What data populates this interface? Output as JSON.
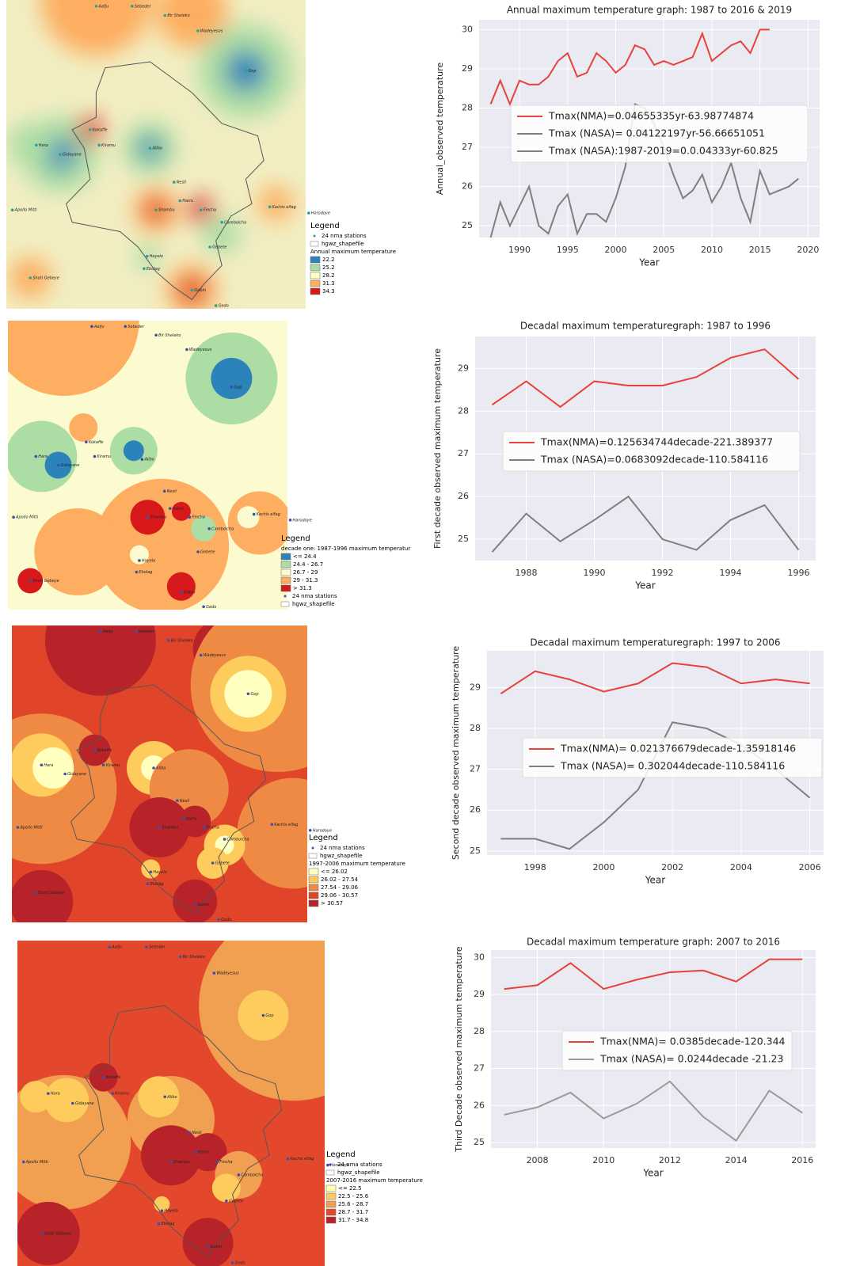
{
  "chart_data": [
    {
      "type": "line",
      "title": "Annual maximum temperature graph: 1987 to 2016 & 2019",
      "x_label": "Year",
      "y_label": "Annual_observed temperature",
      "x": [
        1987,
        1988,
        1989,
        1990,
        1991,
        1992,
        1993,
        1994,
        1995,
        1996,
        1997,
        1998,
        1999,
        2000,
        2001,
        2002,
        2003,
        2004,
        2005,
        2006,
        2007,
        2008,
        2009,
        2010,
        2011,
        2012,
        2013,
        2014,
        2015,
        2016,
        2017,
        2018,
        2019
      ],
      "series": [
        {
          "name": "Tmax(NMA)=0.04655335yr-63.98774874",
          "color": "#e8413b",
          "values": [
            28.1,
            28.7,
            28.1,
            28.7,
            28.6,
            28.6,
            28.8,
            29.2,
            29.4,
            28.8,
            28.9,
            29.4,
            29.2,
            28.9,
            29.1,
            29.6,
            29.5,
            29.1,
            29.2,
            29.1,
            29.2,
            29.3,
            29.9,
            29.2,
            29.4,
            29.6,
            29.7,
            29.4,
            30.0,
            30.0,
            null,
            null,
            null
          ]
        },
        {
          "name": "Tmax (NASA)= 0.04122197yr-56.66651051",
          "color": "#7f7f7f",
          "values": [
            24.7,
            25.6,
            25.0,
            25.5,
            26.0,
            25.0,
            24.8,
            25.5,
            25.8,
            24.8,
            25.3,
            25.3,
            25.1,
            25.7,
            26.5,
            28.1,
            28.0,
            27.6,
            27.0,
            26.3,
            25.7,
            25.9,
            26.3,
            25.6,
            26.0,
            26.6,
            25.7,
            25.1,
            26.4,
            25.8,
            25.9,
            26.0,
            26.2
          ]
        }
      ],
      "legend_extra": [
        {
          "label": "Tmax (NASA):1987-2019=0.0.04333yr-60.825",
          "color": "#7f7f7f"
        }
      ],
      "xlim": [
        1985.8,
        2021.2
      ],
      "xticks": [
        1990,
        1995,
        2000,
        2005,
        2010,
        2015,
        2020
      ],
      "ylim": [
        24.7,
        30.25
      ],
      "yticks": [
        25,
        26,
        27,
        28,
        29,
        30
      ],
      "grid": true
    },
    {
      "type": "line",
      "title": "Decadal maximum temperaturegraph: 1987 to 1996",
      "x_label": "Year",
      "y_label": "First decade observed maximum temperature",
      "x": [
        1987,
        1988,
        1989,
        1990,
        1991,
        1992,
        1993,
        1994,
        1995,
        1996
      ],
      "series": [
        {
          "name": "Tmax(NMA)=0.125634744decade-221.389377",
          "color": "#e8413b",
          "values": [
            28.15,
            28.7,
            28.1,
            28.7,
            28.6,
            28.6,
            28.8,
            29.25,
            29.45,
            28.75
          ]
        },
        {
          "name": "Tmax (NASA)=0.0683092decade-110.584116",
          "color": "#7f7f7f",
          "values": [
            24.7,
            25.6,
            24.95,
            25.45,
            26.0,
            25.0,
            24.75,
            25.45,
            25.8,
            24.75
          ]
        }
      ],
      "xlim": [
        1986.5,
        1996.5
      ],
      "xticks": [
        1988,
        1990,
        1992,
        1994,
        1996
      ],
      "ylim": [
        24.5,
        29.75
      ],
      "yticks": [
        25,
        26,
        27,
        28,
        29
      ],
      "grid": true
    },
    {
      "type": "line",
      "title": "Decadal maximum temperaturegraph: 1997 to 2006",
      "x_label": "Year",
      "y_label": "Second decade observed maximum temperature",
      "x": [
        1997,
        1998,
        1999,
        2000,
        2001,
        2002,
        2003,
        2004,
        2005,
        2006
      ],
      "series": [
        {
          "name": "Tmax(NMA)= 0.021376679decade-1.35918146",
          "color": "#e8413b",
          "values": [
            28.85,
            29.4,
            29.2,
            28.9,
            29.1,
            29.6,
            29.5,
            29.1,
            29.2,
            29.1
          ]
        },
        {
          "name": "Tmax (NASA)= 0.302044decade-110.584116",
          "color": "#7f7f7f",
          "values": [
            25.3,
            25.3,
            25.05,
            25.7,
            26.5,
            28.15,
            28.0,
            27.6,
            27.0,
            26.3
          ]
        }
      ],
      "xlim": [
        1996.6,
        2006.4
      ],
      "xticks": [
        1998,
        2000,
        2002,
        2004,
        2006
      ],
      "ylim": [
        24.9,
        29.9
      ],
      "yticks": [
        25,
        26,
        27,
        28,
        29
      ],
      "grid": true
    },
    {
      "type": "line",
      "title": "Decadal maximum temperature graph: 2007 to 2016",
      "x_label": "Year",
      "y_label": "Third Decade observed maximum temperature",
      "x": [
        2007,
        2008,
        2009,
        2010,
        2011,
        2012,
        2013,
        2014,
        2015,
        2016
      ],
      "series": [
        {
          "name": "Tmax(NMA)= 0.0385decade-120.344",
          "color": "#e8413b",
          "values": [
            29.15,
            29.25,
            29.85,
            29.15,
            29.4,
            29.6,
            29.65,
            29.35,
            29.95,
            29.95
          ]
        },
        {
          "name": "Tmax (NASA)= 0.0244decade -21.23",
          "color": "#9a9a9a",
          "values": [
            25.75,
            25.95,
            26.35,
            25.65,
            26.05,
            26.65,
            25.7,
            25.05,
            26.4,
            25.8
          ]
        }
      ],
      "xlim": [
        2006.6,
        2016.4
      ],
      "xticks": [
        2008,
        2010,
        2012,
        2014,
        2016
      ],
      "ylim": [
        24.85,
        30.2
      ],
      "yticks": [
        25,
        26,
        27,
        28,
        29,
        30
      ],
      "grid": true
    }
  ],
  "stations": [
    "Aafju",
    "Sebeder",
    "Bir Sheleko",
    "Wadeyesus",
    "Gop",
    "Kokaffe",
    "Kiramu",
    "Hara",
    "Gidayane",
    "Alibo",
    "Apollo Mitti",
    "Nesli",
    "Shambu",
    "Harru",
    "Fincha",
    "Kachis elfag",
    "Harodoye",
    "Cambolcha",
    "Gebete",
    "Hayelo",
    "Ebolag",
    "Shoti Gebeye",
    "Gobin",
    "Gedo"
  ],
  "maps": [
    {
      "legend_title": "Legend",
      "stations_label": "24 nma stations",
      "shapefile_label": "hgwz_shapefile",
      "field_title": "Annual maximum temperature",
      "classes_first": false,
      "classes": [
        {
          "label": "22.2",
          "color": "#2b83ba"
        },
        {
          "label": "25.2",
          "color": "#abdda4"
        },
        {
          "label": "28.2",
          "color": "#ffffbf"
        },
        {
          "label": "31.3",
          "color": "#fdae61"
        },
        {
          "label": "34.3",
          "color": "#d7191c"
        }
      ]
    },
    {
      "legend_title": "Legend",
      "stations_label": "24 nma stations",
      "shapefile_label": "hgwz_shapefile",
      "field_title": "decade one: 1987-1996 maximum temperatur",
      "classes_first": true,
      "classes": [
        {
          "label": "<= 24.4",
          "color": "#2b83ba"
        },
        {
          "label": "24.4 - 26.7",
          "color": "#abdda4"
        },
        {
          "label": "26.7 - 29",
          "color": "#fcfbcf"
        },
        {
          "label": "29 - 31.3",
          "color": "#fdae61"
        },
        {
          "label": "> 31.3",
          "color": "#d7191c"
        }
      ]
    },
    {
      "legend_title": "Legend",
      "stations_label": "24 nma stations",
      "shapefile_label": "hgwz_shapefile",
      "field_title": "1997-2006 maximum temperature",
      "classes_first": false,
      "classes": [
        {
          "label": "<= 26.02",
          "color": "#ffffc0"
        },
        {
          "label": "26.02 - 27.54",
          "color": "#fecc5c"
        },
        {
          "label": "27.54 - 29.06",
          "color": "#ef8a45"
        },
        {
          "label": "29.06 - 30.57",
          "color": "#e0452a"
        },
        {
          "label": "> 30.57",
          "color": "#b8232a"
        }
      ]
    },
    {
      "legend_title": "Legend",
      "stations_label": "24 nma stations",
      "shapefile_label": "hgwz_shapefile",
      "field_title": "2007-2016 maximum temperature",
      "classes_first": false,
      "classes": [
        {
          "label": "<= 22.5",
          "color": "#ffffb2"
        },
        {
          "label": "22.5 - 25.6",
          "color": "#fecc5c"
        },
        {
          "label": "25.6 - 28.7",
          "color": "#f0a050"
        },
        {
          "label": "28.7 - 31.7",
          "color": "#e4482c"
        },
        {
          "label": "31.7 - 34.8",
          "color": "#b8232a"
        }
      ]
    }
  ]
}
